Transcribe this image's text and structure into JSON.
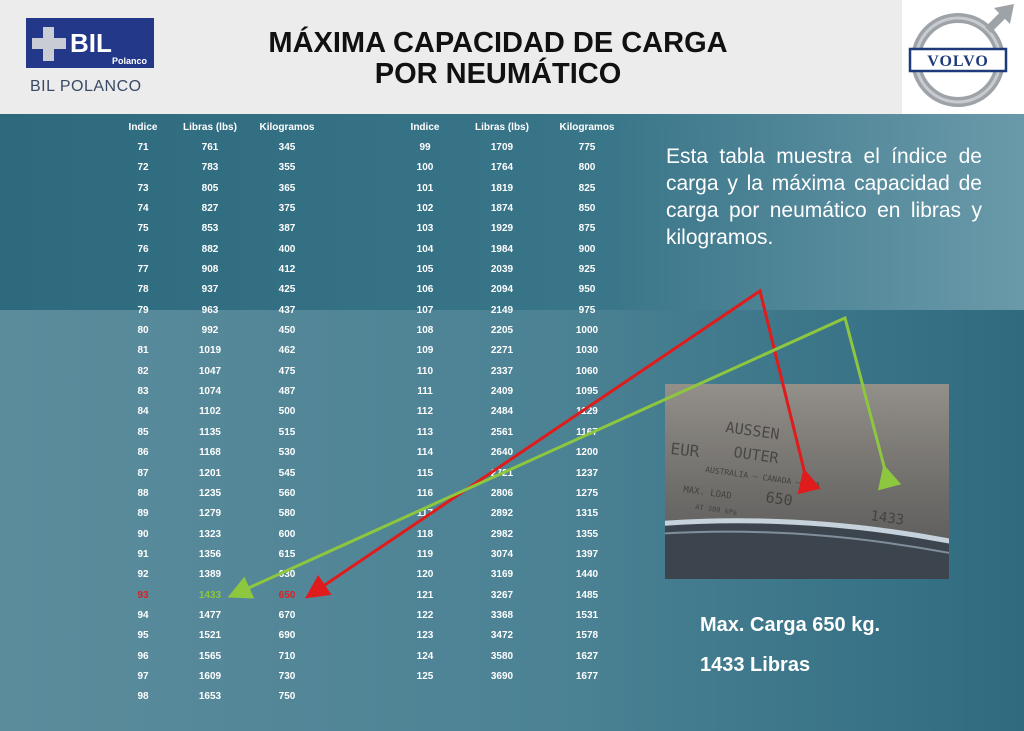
{
  "header": {
    "bil_badge": "BIL",
    "bil_badge_sub": "Polanco",
    "bil_name": "BIL POLANCO",
    "title_line1": "MÁXIMA CAPACIDAD DE CARGA",
    "title_line2": "POR NEUMÁTICO",
    "volvo_logo": "VOLVO"
  },
  "table": {
    "left": {
      "headers": [
        "Indice",
        "Libras  (lbs)",
        "Kilogramos"
      ],
      "rows": [
        [
          "71",
          "761",
          "345"
        ],
        [
          "72",
          "783",
          "355"
        ],
        [
          "73",
          "805",
          "365"
        ],
        [
          "74",
          "827",
          "375"
        ],
        [
          "75",
          "853",
          "387"
        ],
        [
          "76",
          "882",
          "400"
        ],
        [
          "77",
          "908",
          "412"
        ],
        [
          "78",
          "937",
          "425"
        ],
        [
          "79",
          "963",
          "437"
        ],
        [
          "80",
          "992",
          "450"
        ],
        [
          "81",
          "1019",
          "462"
        ],
        [
          "82",
          "1047",
          "475"
        ],
        [
          "83",
          "1074",
          "487"
        ],
        [
          "84",
          "1102",
          "500"
        ],
        [
          "85",
          "1135",
          "515"
        ],
        [
          "86",
          "1168",
          "530"
        ],
        [
          "87",
          "1201",
          "545"
        ],
        [
          "88",
          "1235",
          "560"
        ],
        [
          "89",
          "1279",
          "580"
        ],
        [
          "90",
          "1323",
          "600"
        ],
        [
          "91",
          "1356",
          "615"
        ],
        [
          "92",
          "1389",
          "630"
        ],
        [
          "93",
          "1433",
          "650"
        ],
        [
          "94",
          "1477",
          "670"
        ],
        [
          "95",
          "1521",
          "690"
        ],
        [
          "96",
          "1565",
          "710"
        ],
        [
          "97",
          "1609",
          "730"
        ],
        [
          "98",
          "1653",
          "750"
        ]
      ]
    },
    "right": {
      "headers": [
        "Indice",
        "Libras (lbs)",
        "Kilogramos"
      ],
      "rows": [
        [
          "99",
          "1709",
          "775"
        ],
        [
          "100",
          "1764",
          "800"
        ],
        [
          "101",
          "1819",
          "825"
        ],
        [
          "102",
          "1874",
          "850"
        ],
        [
          "103",
          "1929",
          "875"
        ],
        [
          "104",
          "1984",
          "900"
        ],
        [
          "105",
          "2039",
          "925"
        ],
        [
          "106",
          "2094",
          "950"
        ],
        [
          "107",
          "2149",
          "975"
        ],
        [
          "108",
          "2205",
          "1000"
        ],
        [
          "109",
          "2271",
          "1030"
        ],
        [
          "110",
          "2337",
          "1060"
        ],
        [
          "111",
          "2409",
          "1095"
        ],
        [
          "112",
          "2484",
          "1129"
        ],
        [
          "113",
          "2561",
          "1167"
        ],
        [
          "114",
          "2640",
          "1200"
        ],
        [
          "115",
          "2721",
          "1237"
        ],
        [
          "116",
          "2806",
          "1275"
        ],
        [
          "117",
          "2892",
          "1315"
        ],
        [
          "118",
          "2982",
          "1355"
        ],
        [
          "119",
          "3074",
          "1397"
        ],
        [
          "120",
          "3169",
          "1440"
        ],
        [
          "121",
          "3267",
          "1485"
        ],
        [
          "122",
          "3368",
          "1531"
        ],
        [
          "123",
          "3472",
          "1578"
        ],
        [
          "124",
          "3580",
          "1627"
        ],
        [
          "125",
          "3690",
          "1677"
        ]
      ]
    },
    "highlight_row": 22,
    "colors": {
      "text": "#ffffff",
      "index_highlight": "#e02020",
      "lbs_highlight": "#8cc63f",
      "kg_highlight": "#e02020"
    }
  },
  "description": "Esta tabla muestra el índice de carga y la máxima capacidad de carga por neumático en libras y kilogramos.",
  "photo": {
    "line1": "AUSSEN",
    "line2": "OUTER",
    "line0": "EUR",
    "line3": "AUSTRALIA – CANADA – USA",
    "line4": "MAX. LOAD",
    "load_kg": "650",
    "load_lbs": "1433",
    "line5": "AT  300  kPa"
  },
  "summary": {
    "max_load": "Max. Carga 650 kg.",
    "max_lbs": "1433 Libras"
  },
  "arrow_colors": {
    "red": "#e01b1b",
    "green": "#8dc63f"
  }
}
